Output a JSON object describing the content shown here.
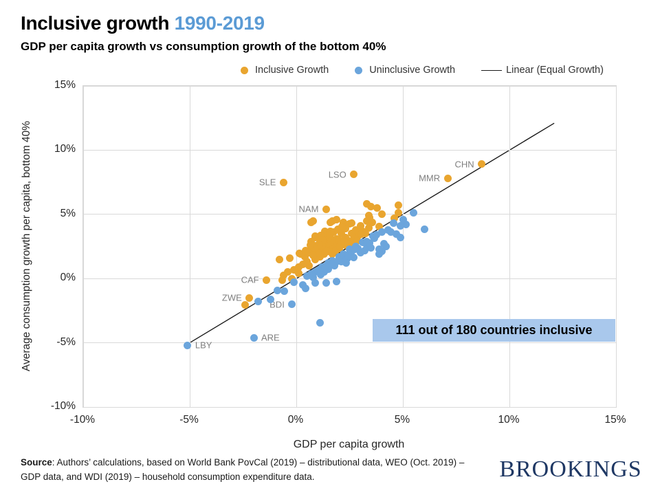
{
  "header": {
    "title": "Inclusive growth",
    "title_accent": "1990-2019",
    "subtitle": "GDP per capita growth vs consumption growth of the bottom 40%",
    "accent_color": "#5b9bd5"
  },
  "annotation": {
    "text": "111 out of 180 countries inclusive",
    "bg_color": "#a9c8ec"
  },
  "source": {
    "label": "Source",
    "text": ": Authors’ calculations, based on World Bank PovCal (2019) – distributional data, WEO (Oct. 2019) – GDP data, and WDI (2019) – household consumption expenditure data."
  },
  "logo": {
    "text": "BROOKINGS",
    "color": "#1f3864"
  },
  "chart_data": {
    "type": "scatter",
    "title": "Inclusive growth 1990-2019",
    "xlabel": "GDP per capita growth",
    "ylabel": "Average consumption growth per capita, bottom 40%",
    "xlim": [
      -10,
      15
    ],
    "ylim": [
      -10,
      15
    ],
    "x_tick_values": [
      -10,
      -5,
      0,
      5,
      10,
      15
    ],
    "y_tick_values": [
      15,
      10,
      5,
      0,
      -5,
      -10
    ],
    "x_tick_labels": [
      "-10%",
      "-5%",
      "0%",
      "5%",
      "10%",
      "15%"
    ],
    "y_tick_labels": [
      "15%",
      "10%",
      "5%",
      "0%",
      "-5%",
      "-10%"
    ],
    "grid": true,
    "legend_position": "top",
    "legend": [
      {
        "label": "Inclusive Growth",
        "color": "#e9a52f",
        "marker": "dot"
      },
      {
        "label": "Uninclusive Growth",
        "color": "#6ba5dc",
        "marker": "dot"
      },
      {
        "label": "Linear (Equal Growth)",
        "color": "#1a1a1a",
        "marker": "line"
      }
    ],
    "trend_line": {
      "name": "Linear (Equal Growth)",
      "x1": -5.2,
      "y1": -5.2,
      "x2": 12.1,
      "y2": 12.1,
      "color": "#1a1a1a"
    },
    "annotation_box": {
      "text": "111 out of 180 countries inclusive",
      "x_range": [
        3.6,
        15
      ],
      "y_range": [
        -5.0,
        -3.2
      ]
    },
    "series": [
      {
        "name": "Inclusive Growth",
        "color": "#e9a52f",
        "points": [
          [
            8.7,
            8.9,
            "CHN",
            "left"
          ],
          [
            7.1,
            7.8,
            "MMR",
            "left"
          ],
          [
            2.7,
            8.1,
            "LSO",
            "left"
          ],
          [
            -0.6,
            7.5,
            "SLE",
            "left"
          ],
          [
            1.4,
            5.4,
            "NAM",
            "left"
          ],
          [
            -1.4,
            -0.1,
            "CAF",
            "left"
          ],
          [
            -2.2,
            -1.5,
            "ZWE",
            "left"
          ],
          [
            -2.4,
            -2.05
          ],
          [
            3.3,
            5.8
          ],
          [
            3.5,
            5.6
          ],
          [
            3.8,
            5.5
          ],
          [
            4.8,
            5.7
          ],
          [
            4.8,
            5.1
          ],
          [
            4.0,
            5.0
          ],
          [
            4.6,
            4.7
          ],
          [
            3.45,
            4.75
          ],
          [
            3.3,
            4.5
          ],
          [
            3.9,
            4.05
          ],
          [
            3.4,
            3.95
          ],
          [
            3.55,
            4.4
          ],
          [
            3.4,
            4.9
          ],
          [
            0.7,
            4.4
          ],
          [
            1.6,
            4.4
          ],
          [
            2.2,
            4.4
          ],
          [
            2.5,
            4.25
          ],
          [
            2.6,
            4.3
          ],
          [
            1.7,
            4.5
          ],
          [
            1.9,
            4.6
          ],
          [
            0.8,
            4.5
          ],
          [
            1.35,
            3.7
          ],
          [
            1.6,
            3.7
          ],
          [
            0.9,
            3.3
          ],
          [
            1.1,
            3.1
          ],
          [
            1.5,
            2.9
          ],
          [
            1.9,
            3.1
          ],
          [
            2.3,
            3.2
          ],
          [
            3.1,
            3.7
          ],
          [
            0.7,
            2.2
          ],
          [
            0.9,
            2.55
          ],
          [
            1.1,
            2.8
          ],
          [
            1.3,
            2.55
          ],
          [
            1.5,
            2.8
          ],
          [
            1.6,
            3.2
          ],
          [
            1.4,
            3.35
          ],
          [
            1.15,
            3.35
          ],
          [
            0.9,
            3.2
          ],
          [
            0.7,
            2.9
          ],
          [
            0.15,
            1.95
          ],
          [
            0.4,
            1.7
          ],
          [
            -0.8,
            1.5
          ],
          [
            -0.3,
            1.6
          ],
          [
            -0.6,
            0.25
          ],
          [
            -0.4,
            0.5
          ],
          [
            0.2,
            1.9
          ],
          [
            0.6,
            2.0
          ],
          [
            -0.65,
            -0.1
          ],
          [
            0.0,
            0.6
          ],
          [
            0.1,
            0.4
          ],
          [
            -0.2,
            0.0
          ],
          [
            0.6,
            1.0
          ],
          [
            1.0,
            2.3
          ],
          [
            1.2,
            2.1
          ],
          [
            1.4,
            2.4
          ],
          [
            1.6,
            2.6
          ],
          [
            1.8,
            2.8
          ],
          [
            2.0,
            3.0
          ],
          [
            1.7,
            2.3
          ],
          [
            1.9,
            2.5
          ],
          [
            2.1,
            2.7
          ],
          [
            1.3,
            1.9
          ],
          [
            1.5,
            2.1
          ],
          [
            1.1,
            1.7
          ],
          [
            0.9,
            1.5
          ],
          [
            1.7,
            1.9
          ],
          [
            2.0,
            2.35
          ],
          [
            2.3,
            2.6
          ],
          [
            2.5,
            2.9
          ],
          [
            2.7,
            3.1
          ],
          [
            2.9,
            3.3
          ],
          [
            2.4,
            3.0
          ],
          [
            2.6,
            3.5
          ],
          [
            2.8,
            3.8
          ],
          [
            3.0,
            4.1
          ],
          [
            2.1,
            3.5
          ],
          [
            2.3,
            3.9
          ],
          [
            1.2,
            2.6
          ],
          [
            1.0,
            2.0
          ],
          [
            0.8,
            1.8
          ],
          [
            0.5,
            1.3
          ],
          [
            0.3,
            1.1
          ],
          [
            0.1,
            0.9
          ],
          [
            -0.1,
            0.7
          ],
          [
            1.45,
            2.15
          ],
          [
            1.65,
            2.05
          ],
          [
            1.85,
            2.2
          ],
          [
            2.05,
            2.5
          ],
          [
            2.25,
            2.85
          ],
          [
            1.55,
            3.45
          ],
          [
            1.75,
            3.6
          ],
          [
            1.95,
            3.85
          ],
          [
            2.15,
            4.05
          ],
          [
            1.25,
            3.0
          ],
          [
            1.05,
            2.65
          ],
          [
            0.85,
            2.4
          ],
          [
            0.65,
            2.6
          ],
          [
            0.45,
            2.2
          ],
          [
            2.45,
            2.7
          ],
          [
            2.65,
            2.75
          ],
          [
            2.85,
            2.95
          ],
          [
            3.05,
            3.45
          ],
          [
            3.25,
            3.5
          ]
        ]
      },
      {
        "name": "Uninclusive Growth",
        "color": "#6ba5dc",
        "points": [
          [
            -5.1,
            -5.2,
            "LBY",
            "right"
          ],
          [
            -2.0,
            -4.6,
            "ARE",
            "right"
          ],
          [
            -0.2,
            -2.0,
            "BDI",
            "left"
          ],
          [
            1.1,
            -3.45
          ],
          [
            6.0,
            3.85
          ],
          [
            5.5,
            5.1
          ],
          [
            5.15,
            4.2
          ],
          [
            4.9,
            4.1
          ],
          [
            4.3,
            3.8
          ],
          [
            4.45,
            3.6
          ],
          [
            3.65,
            3.15
          ],
          [
            3.3,
            2.6
          ],
          [
            4.1,
            2.7
          ],
          [
            4.2,
            2.5
          ],
          [
            4.0,
            2.1
          ],
          [
            3.9,
            1.9
          ],
          [
            4.7,
            3.45
          ],
          [
            4.9,
            3.2
          ],
          [
            2.5,
            2.3
          ],
          [
            2.8,
            2.5
          ],
          [
            3.1,
            2.8
          ],
          [
            3.5,
            2.4
          ],
          [
            3.9,
            2.3
          ],
          [
            3.0,
            2.0
          ],
          [
            2.7,
            1.65
          ],
          [
            2.5,
            1.95
          ],
          [
            2.2,
            1.5
          ],
          [
            1.9,
            1.3
          ],
          [
            1.6,
            1.15
          ],
          [
            1.5,
            0.75
          ],
          [
            1.3,
            0.5
          ],
          [
            1.1,
            0.75
          ],
          [
            0.9,
            0.5
          ],
          [
            -0.1,
            -0.3
          ],
          [
            0.3,
            -0.5
          ],
          [
            0.9,
            -0.35
          ],
          [
            1.4,
            -0.35
          ],
          [
            1.9,
            -0.25
          ],
          [
            -0.55,
            -1.0
          ],
          [
            -0.9,
            -0.95
          ],
          [
            -1.2,
            -1.6
          ],
          [
            -1.8,
            -1.8
          ],
          [
            0.5,
            0.2
          ],
          [
            0.7,
            0.35
          ],
          [
            1.0,
            0.6
          ],
          [
            1.2,
            0.9
          ],
          [
            1.5,
            1.2
          ],
          [
            1.7,
            1.4
          ],
          [
            2.0,
            1.7
          ],
          [
            2.2,
            1.9
          ],
          [
            1.8,
            1.0
          ],
          [
            2.1,
            1.3
          ],
          [
            2.4,
            1.6
          ],
          [
            2.6,
            2.1
          ],
          [
            3.3,
            2.9
          ],
          [
            3.6,
            3.3
          ],
          [
            4.0,
            3.6
          ],
          [
            0.45,
            -0.75
          ],
          [
            1.15,
            0.3
          ],
          [
            1.35,
            0.95
          ],
          [
            0.8,
            0.1
          ],
          [
            2.9,
            2.35
          ],
          [
            3.2,
            2.2
          ],
          [
            3.45,
            2.75
          ],
          [
            2.35,
            1.2
          ],
          [
            2.75,
            2.3
          ],
          [
            3.75,
            3.4
          ],
          [
            4.55,
            4.3
          ],
          [
            5.0,
            4.6
          ]
        ]
      }
    ]
  }
}
